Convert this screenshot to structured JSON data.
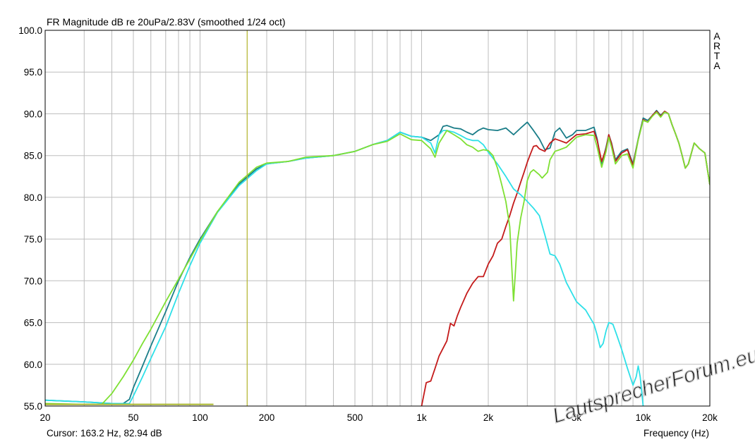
{
  "chart_data": {
    "type": "line",
    "title": "FR Magnitude dB re 20uPa/2.83V (smoothed 1/24 oct)",
    "xlabel": "Frequency (Hz)",
    "ylabel": "",
    "x_scale": "log",
    "xlim": [
      20,
      20000
    ],
    "ylim": [
      55,
      100
    ],
    "grid": true,
    "x_tick_labels": [
      {
        "value": 20,
        "label": "20"
      },
      {
        "value": 50,
        "label": "50"
      },
      {
        "value": 100,
        "label": "100"
      },
      {
        "value": 200,
        "label": "200"
      },
      {
        "value": 500,
        "label": "500"
      },
      {
        "value": 1000,
        "label": "1k"
      },
      {
        "value": 2000,
        "label": "2k"
      },
      {
        "value": 5000,
        "label": "5k"
      },
      {
        "value": 10000,
        "label": "10k"
      },
      {
        "value": 20000,
        "label": "20k"
      }
    ],
    "y_tick_labels": [
      {
        "value": 100,
        "label": "100.0"
      },
      {
        "value": 95,
        "label": "95.0"
      },
      {
        "value": 90,
        "label": "90.0"
      },
      {
        "value": 85,
        "label": "85.0"
      },
      {
        "value": 80,
        "label": "80.0"
      },
      {
        "value": 75,
        "label": "75.0"
      },
      {
        "value": 70,
        "label": "70.0"
      },
      {
        "value": 65,
        "label": "65.0"
      },
      {
        "value": 60,
        "label": "60.0"
      },
      {
        "value": 55,
        "label": "55.0"
      }
    ],
    "cursor_x": 163.2,
    "series": [
      {
        "color": "#1a7d88",
        "points": [
          [
            20,
            55.7
          ],
          [
            30,
            55.5
          ],
          [
            40,
            55.3
          ],
          [
            45,
            55.3
          ],
          [
            48,
            55.8
          ],
          [
            50,
            57.2
          ],
          [
            55,
            59.8
          ],
          [
            60,
            62.2
          ],
          [
            70,
            66.3
          ],
          [
            80,
            70
          ],
          [
            90,
            72.8
          ],
          [
            100,
            75
          ],
          [
            120,
            78.3
          ],
          [
            150,
            81.6
          ],
          [
            180,
            83.4
          ],
          [
            200,
            84
          ],
          [
            250,
            84.3
          ],
          [
            300,
            84.7
          ],
          [
            400,
            85
          ],
          [
            500,
            85.5
          ],
          [
            600,
            86.3
          ],
          [
            700,
            86.8
          ],
          [
            800,
            87.8
          ],
          [
            900,
            87.3
          ],
          [
            1000,
            87.2
          ],
          [
            1100,
            86.8
          ],
          [
            1200,
            87.5
          ],
          [
            1250,
            88.5
          ],
          [
            1300,
            88.6
          ],
          [
            1400,
            88.3
          ],
          [
            1500,
            88.2
          ],
          [
            1600,
            87.8
          ],
          [
            1700,
            87.5
          ],
          [
            1800,
            88
          ],
          [
            1900,
            88.3
          ],
          [
            2000,
            88.1
          ],
          [
            2200,
            88
          ],
          [
            2400,
            88.3
          ],
          [
            2600,
            87.5
          ],
          [
            2800,
            88.3
          ],
          [
            3000,
            89
          ],
          [
            3200,
            88
          ],
          [
            3400,
            87
          ],
          [
            3600,
            85.7
          ],
          [
            3800,
            85.9
          ],
          [
            4000,
            87.8
          ],
          [
            4200,
            88.3
          ],
          [
            4500,
            87.1
          ],
          [
            4800,
            87.5
          ],
          [
            5000,
            88
          ],
          [
            5500,
            88
          ],
          [
            6000,
            88.4
          ],
          [
            6200,
            87
          ],
          [
            6500,
            84
          ],
          [
            6800,
            86
          ],
          [
            7000,
            87.5
          ],
          [
            7200,
            86.5
          ],
          [
            7500,
            84.5
          ],
          [
            8000,
            85.5
          ],
          [
            8500,
            85.8
          ],
          [
            9000,
            84
          ],
          [
            9500,
            87
          ],
          [
            10000,
            89.5
          ],
          [
            10500,
            89.2
          ],
          [
            11000,
            89.8
          ],
          [
            11500,
            90.4
          ],
          [
            12000,
            89.8
          ],
          [
            12500,
            90.3
          ],
          [
            13000,
            90
          ],
          [
            13500,
            88.7
          ],
          [
            14000,
            87.6
          ],
          [
            14500,
            86.5
          ],
          [
            15000,
            85
          ],
          [
            15500,
            83.5
          ],
          [
            16000,
            84
          ],
          [
            17000,
            86.5
          ],
          [
            18000,
            85.8
          ],
          [
            19000,
            85.3
          ],
          [
            20000,
            81.5
          ]
        ]
      },
      {
        "color": "#c41a1a",
        "points": [
          [
            1000,
            55
          ],
          [
            1050,
            57.8
          ],
          [
            1100,
            58
          ],
          [
            1150,
            59.5
          ],
          [
            1200,
            61
          ],
          [
            1300,
            62.8
          ],
          [
            1350,
            64.9
          ],
          [
            1400,
            64.6
          ],
          [
            1450,
            65.8
          ],
          [
            1500,
            66.8
          ],
          [
            1600,
            68.5
          ],
          [
            1700,
            69.7
          ],
          [
            1800,
            70.5
          ],
          [
            1900,
            70.5
          ],
          [
            2000,
            72
          ],
          [
            2100,
            73
          ],
          [
            2200,
            74.5
          ],
          [
            2300,
            75
          ],
          [
            2400,
            76.5
          ],
          [
            2500,
            77.8
          ],
          [
            2600,
            79.3
          ],
          [
            2700,
            80.5
          ],
          [
            2800,
            81.8
          ],
          [
            2900,
            83
          ],
          [
            3000,
            84.2
          ],
          [
            3100,
            85.2
          ],
          [
            3200,
            86.1
          ],
          [
            3300,
            86.2
          ],
          [
            3400,
            85.8
          ],
          [
            3600,
            85.5
          ],
          [
            3800,
            86.5
          ],
          [
            4000,
            87
          ],
          [
            4200,
            86.8
          ],
          [
            4500,
            86.5
          ],
          [
            5000,
            87.5
          ],
          [
            5500,
            87.6
          ],
          [
            6000,
            87.9
          ],
          [
            6200,
            86.8
          ],
          [
            6500,
            84.3
          ],
          [
            6800,
            85.8
          ],
          [
            7000,
            87.5
          ],
          [
            7200,
            86.4
          ],
          [
            7500,
            84.3
          ],
          [
            8000,
            85.3
          ],
          [
            8500,
            85.7
          ],
          [
            9000,
            83.8
          ],
          [
            9500,
            86.9
          ],
          [
            10000,
            89.3
          ],
          [
            10500,
            89
          ],
          [
            11000,
            89.8
          ],
          [
            11500,
            90.3
          ],
          [
            12000,
            89.7
          ],
          [
            12500,
            90.3
          ],
          [
            13000,
            90
          ],
          [
            13500,
            88.7
          ],
          [
            14000,
            87.6
          ],
          [
            14500,
            86.5
          ],
          [
            15000,
            85
          ],
          [
            15500,
            83.5
          ],
          [
            16000,
            84
          ],
          [
            17000,
            86.5
          ],
          [
            18000,
            85.8
          ],
          [
            19000,
            85.3
          ],
          [
            20000,
            81.5
          ]
        ]
      },
      {
        "color": "#2ee0e8",
        "points": [
          [
            20,
            55.7
          ],
          [
            30,
            55.5
          ],
          [
            40,
            55.3
          ],
          [
            45,
            55.3
          ],
          [
            48,
            55.3
          ],
          [
            50,
            56.2
          ],
          [
            55,
            58.5
          ],
          [
            60,
            60.7
          ],
          [
            70,
            64.5
          ],
          [
            80,
            68.5
          ],
          [
            90,
            71.8
          ],
          [
            100,
            74.5
          ],
          [
            120,
            78.2
          ],
          [
            150,
            81.4
          ],
          [
            180,
            83.2
          ],
          [
            200,
            84
          ],
          [
            250,
            84.3
          ],
          [
            300,
            84.7
          ],
          [
            400,
            85
          ],
          [
            500,
            85.5
          ],
          [
            600,
            86.3
          ],
          [
            700,
            86.8
          ],
          [
            800,
            87.8
          ],
          [
            900,
            87.3
          ],
          [
            1000,
            87.2
          ],
          [
            1100,
            86.5
          ],
          [
            1150,
            85.3
          ],
          [
            1200,
            87.5
          ],
          [
            1250,
            88
          ],
          [
            1300,
            88
          ],
          [
            1400,
            87.8
          ],
          [
            1500,
            87.4
          ],
          [
            1600,
            87
          ],
          [
            1700,
            86.8
          ],
          [
            1800,
            86.8
          ],
          [
            1900,
            86.3
          ],
          [
            2000,
            85.4
          ],
          [
            2200,
            84
          ],
          [
            2400,
            82.5
          ],
          [
            2600,
            81
          ],
          [
            2800,
            80.3
          ],
          [
            3000,
            79.5
          ],
          [
            3200,
            78.7
          ],
          [
            3400,
            77.8
          ],
          [
            3600,
            75.5
          ],
          [
            3800,
            73.2
          ],
          [
            4000,
            73
          ],
          [
            4200,
            72
          ],
          [
            4500,
            69.8
          ],
          [
            5000,
            67.5
          ],
          [
            5500,
            66.5
          ],
          [
            6000,
            64.8
          ],
          [
            6200,
            63.5
          ],
          [
            6400,
            62
          ],
          [
            6600,
            62.5
          ],
          [
            6800,
            64
          ],
          [
            7000,
            65
          ],
          [
            7300,
            64.8
          ],
          [
            7600,
            63.5
          ],
          [
            8000,
            61.8
          ],
          [
            8500,
            59.5
          ],
          [
            9000,
            57.5
          ],
          [
            9300,
            58.5
          ],
          [
            9500,
            59.8
          ],
          [
            9700,
            58.5
          ],
          [
            10000,
            55
          ]
        ]
      },
      {
        "color": "#7ee033",
        "points": [
          [
            20,
            55.3
          ],
          [
            30,
            55.2
          ],
          [
            36,
            55.2
          ],
          [
            40,
            56.5
          ],
          [
            45,
            58.5
          ],
          [
            50,
            60.5
          ],
          [
            55,
            62.5
          ],
          [
            60,
            64.2
          ],
          [
            70,
            67.5
          ],
          [
            80,
            70.2
          ],
          [
            90,
            72.6
          ],
          [
            100,
            74.8
          ],
          [
            120,
            78.3
          ],
          [
            150,
            81.8
          ],
          [
            180,
            83.6
          ],
          [
            200,
            84.1
          ],
          [
            250,
            84.3
          ],
          [
            300,
            84.8
          ],
          [
            400,
            85
          ],
          [
            500,
            85.5
          ],
          [
            600,
            86.3
          ],
          [
            700,
            86.7
          ],
          [
            800,
            87.6
          ],
          [
            900,
            86.9
          ],
          [
            1000,
            86.8
          ],
          [
            1100,
            85.8
          ],
          [
            1150,
            84.8
          ],
          [
            1200,
            86.5
          ],
          [
            1300,
            88
          ],
          [
            1400,
            87.5
          ],
          [
            1500,
            87
          ],
          [
            1600,
            86.3
          ],
          [
            1700,
            86
          ],
          [
            1800,
            85.5
          ],
          [
            1900,
            85.7
          ],
          [
            2000,
            85.6
          ],
          [
            2100,
            85
          ],
          [
            2200,
            83.5
          ],
          [
            2300,
            81.5
          ],
          [
            2400,
            79.5
          ],
          [
            2500,
            76.5
          ],
          [
            2550,
            72
          ],
          [
            2600,
            67.6
          ],
          [
            2650,
            71
          ],
          [
            2700,
            74.5
          ],
          [
            2800,
            77.5
          ],
          [
            2900,
            79.5
          ],
          [
            3000,
            82
          ],
          [
            3100,
            83
          ],
          [
            3200,
            83.3
          ],
          [
            3400,
            82.7
          ],
          [
            3500,
            82.3
          ],
          [
            3700,
            83
          ],
          [
            3800,
            84.5
          ],
          [
            4000,
            85.5
          ],
          [
            4200,
            85.7
          ],
          [
            4500,
            86
          ],
          [
            5000,
            87.2
          ],
          [
            5500,
            87.5
          ],
          [
            6000,
            87.4
          ],
          [
            6200,
            86
          ],
          [
            6500,
            83.6
          ],
          [
            6800,
            85.5
          ],
          [
            7000,
            87.2
          ],
          [
            7200,
            86
          ],
          [
            7500,
            84
          ],
          [
            8000,
            85
          ],
          [
            8500,
            85.2
          ],
          [
            9000,
            83.5
          ],
          [
            9500,
            86.9
          ],
          [
            10000,
            89.2
          ],
          [
            10500,
            89
          ],
          [
            11000,
            89.7
          ],
          [
            11500,
            90.2
          ],
          [
            12000,
            89.6
          ],
          [
            12500,
            90.2
          ],
          [
            13000,
            90
          ],
          [
            13500,
            88.7
          ],
          [
            14000,
            87.6
          ],
          [
            14500,
            86.5
          ],
          [
            15000,
            85
          ],
          [
            15500,
            83.5
          ],
          [
            16000,
            84
          ],
          [
            17000,
            86.5
          ],
          [
            18000,
            85.8
          ],
          [
            19000,
            85.3
          ],
          [
            20000,
            81.5
          ]
        ]
      }
    ]
  },
  "side_label": "A\nR\nT\nA",
  "cursor_text": "Cursor: 163.2 Hz, 82.94 dB",
  "watermark": "LautsprecherForum.eu",
  "colors": {
    "grid": "#bdbdbd",
    "cursor": "#b7b93a",
    "reference": "#a8b52a",
    "watermark": "#d2d2d2"
  }
}
